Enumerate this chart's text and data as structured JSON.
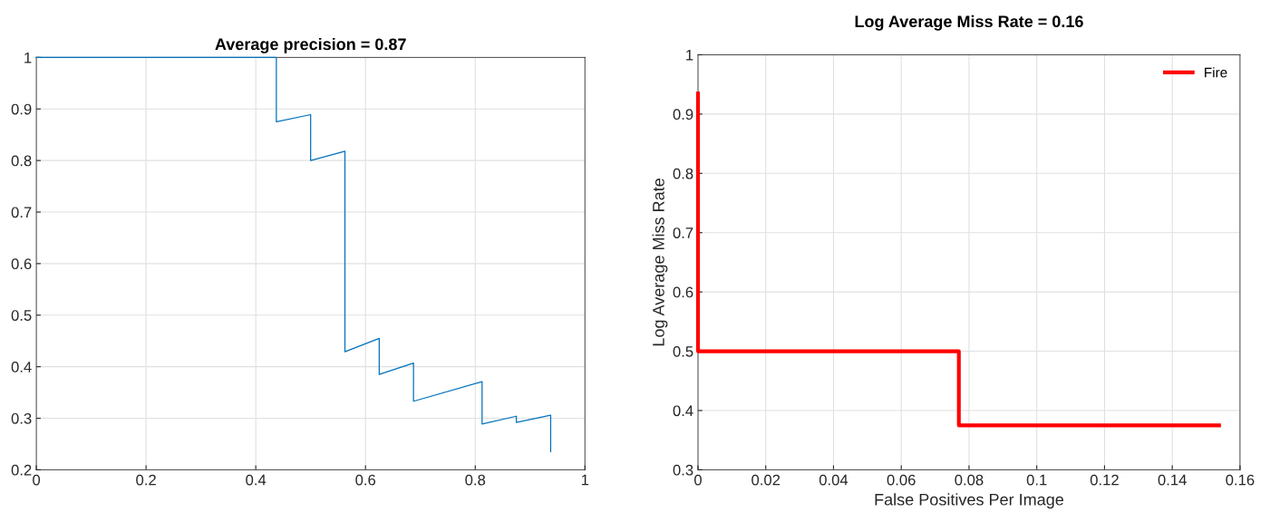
{
  "chart_data": [
    {
      "type": "line",
      "title": "Average precision = 0.87",
      "xlim": [
        0,
        1
      ],
      "ylim": [
        0.2,
        1
      ],
      "xticks": [
        0,
        0.2,
        0.4,
        0.6,
        0.8,
        1
      ],
      "yticks": [
        0.2,
        0.3,
        0.4,
        0.5,
        0.6,
        0.7,
        0.8,
        0.9,
        1
      ],
      "grid": true,
      "legend": false,
      "series": [
        {
          "color": "#0072bd",
          "x": [
            0,
            0.4375,
            0.4375,
            0.5,
            0.5,
            0.5625,
            0.5625,
            0.625,
            0.625,
            0.6875,
            0.6875,
            0.8125,
            0.8125,
            0.875,
            0.875,
            0.9375,
            0.9375
          ],
          "values": [
            1,
            1,
            0.875,
            0.889,
            0.8,
            0.818,
            0.429,
            0.455,
            0.385,
            0.407,
            0.333,
            0.371,
            0.289,
            0.304,
            0.292,
            0.306,
            0.235
          ]
        }
      ]
    },
    {
      "type": "line",
      "title": "Log Average Miss Rate = 0.16",
      "xlabel": "False Positives Per Image",
      "ylabel": "Log Average Miss Rate",
      "xlim": [
        0,
        0.16
      ],
      "ylim": [
        0.3,
        1
      ],
      "xticks": [
        0,
        0.02,
        0.04,
        0.06,
        0.08,
        0.1,
        0.12,
        0.14,
        0.16
      ],
      "yticks": [
        0.3,
        0.4,
        0.5,
        0.6,
        0.7,
        0.8,
        0.9,
        1
      ],
      "grid": true,
      "legend": "top right",
      "series": [
        {
          "name": "Fire",
          "color": "#ff0000",
          "x": [
            0,
            0,
            0.077,
            0.077,
            0.1538
          ],
          "values": [
            0.935,
            0.5,
            0.5,
            0.375,
            0.375
          ]
        }
      ]
    }
  ]
}
